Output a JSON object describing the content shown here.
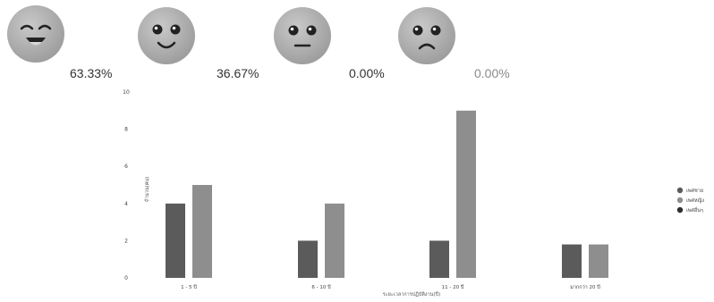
{
  "ratings": [
    {
      "icon": "laughing-face-icon",
      "percent": "63.33%"
    },
    {
      "icon": "smiling-face-icon",
      "percent": "36.67%"
    },
    {
      "icon": "neutral-face-icon",
      "percent": "0.00%"
    },
    {
      "icon": "sad-face-icon",
      "percent": "0.00%"
    }
  ],
  "chart_data": {
    "type": "bar",
    "categories": [
      "1 - 5 ปี",
      "6 - 10 ปี",
      "11 - 20 ปี",
      "มากกว่า 20 ปี"
    ],
    "series": [
      {
        "name": "เพศชาย",
        "color": "#5b5b5b",
        "values": [
          4,
          2,
          2,
          1.8
        ]
      },
      {
        "name": "เพศหญิง",
        "color": "#8e8e8e",
        "values": [
          5,
          4,
          9,
          1.8
        ]
      },
      {
        "name": "เพศอื่นๆ",
        "color": "#2f2f2f",
        "values": [
          0,
          0,
          0,
          0
        ]
      }
    ],
    "y_ticks": [
      "0",
      "2",
      "4",
      "6",
      "8",
      "10"
    ],
    "ylim": [
      0,
      10
    ],
    "xlabel": "ระยะเวลาการปฏิบัติงาน(ปี)",
    "ylabel": "จำนวน(คน)",
    "legend_position": "right",
    "grid": false
  }
}
